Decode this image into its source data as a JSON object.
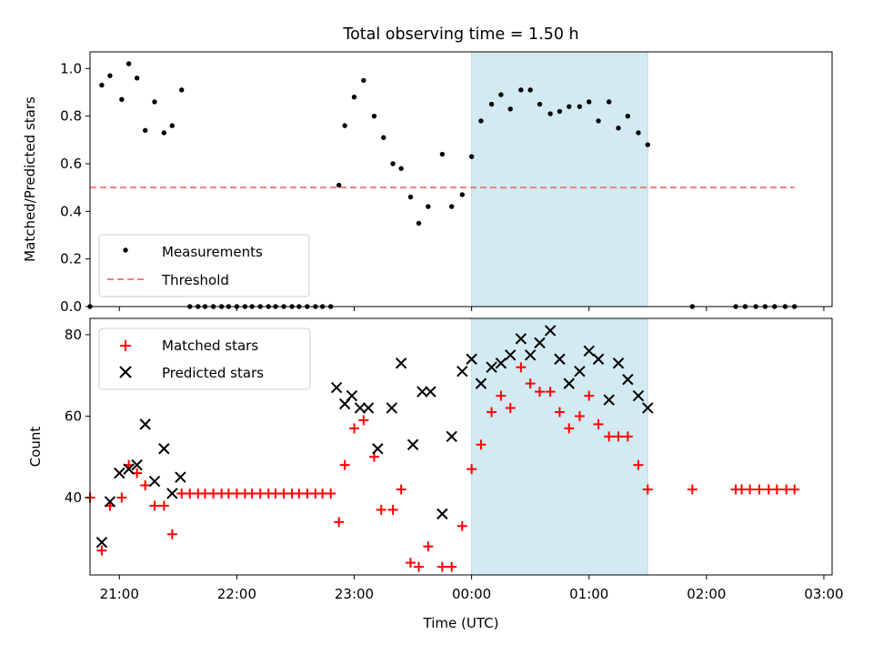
{
  "chart_data": [
    {
      "type": "scatter",
      "title": "Total observing time = 1.50 h",
      "ylabel": "Matched/Predicted stars",
      "xlabel": "",
      "xlim": [
        -3.25,
        3.07
      ],
      "ylim": [
        0,
        1.07
      ],
      "xticks": [
        -3,
        -2,
        -1,
        0,
        1,
        2,
        3
      ],
      "yticks": [
        0.0,
        0.2,
        0.4,
        0.6,
        0.8,
        1.0
      ],
      "ytick_labels": [
        "0.0",
        "0.2",
        "0.4",
        "0.6",
        "0.8",
        "1.0"
      ],
      "highlight_span": {
        "x0": 0.0,
        "x1": 1.5,
        "color": "#add8e6"
      },
      "threshold": {
        "name": "Threshold",
        "y": 0.5,
        "x0": -3.25,
        "x1": 2.75,
        "color": "#f07f7f"
      },
      "legend": {
        "position": "lower-left",
        "entries": [
          "Measurements",
          "Threshold"
        ]
      },
      "series": [
        {
          "name": "Measurements",
          "color": "#000000",
          "points": [
            [
              -3.25,
              0.0
            ],
            [
              -3.15,
              0.93
            ],
            [
              -3.08,
              0.97
            ],
            [
              -2.98,
              0.87
            ],
            [
              -2.92,
              1.02
            ],
            [
              -2.85,
              0.96
            ],
            [
              -2.78,
              0.74
            ],
            [
              -2.7,
              0.86
            ],
            [
              -2.62,
              0.73
            ],
            [
              -2.55,
              0.76
            ],
            [
              -2.47,
              0.91
            ],
            [
              -2.4,
              0.0
            ],
            [
              -2.33,
              0.0
            ],
            [
              -2.27,
              0.0
            ],
            [
              -2.2,
              0.0
            ],
            [
              -2.13,
              0.0
            ],
            [
              -2.07,
              0.0
            ],
            [
              -2.0,
              0.0
            ],
            [
              -1.93,
              0.0
            ],
            [
              -1.87,
              0.0
            ],
            [
              -1.8,
              0.0
            ],
            [
              -1.73,
              0.0
            ],
            [
              -1.67,
              0.0
            ],
            [
              -1.6,
              0.0
            ],
            [
              -1.53,
              0.0
            ],
            [
              -1.47,
              0.0
            ],
            [
              -1.4,
              0.0
            ],
            [
              -1.33,
              0.0
            ],
            [
              -1.27,
              0.0
            ],
            [
              -1.2,
              0.0
            ],
            [
              -1.13,
              0.51
            ],
            [
              -1.08,
              0.76
            ],
            [
              -1.0,
              0.88
            ],
            [
              -0.92,
              0.95
            ],
            [
              -0.83,
              0.8
            ],
            [
              -0.75,
              0.71
            ],
            [
              -0.67,
              0.6
            ],
            [
              -0.6,
              0.58
            ],
            [
              -0.52,
              0.46
            ],
            [
              -0.45,
              0.35
            ],
            [
              -0.37,
              0.42
            ],
            [
              -0.25,
              0.64
            ],
            [
              -0.17,
              0.42
            ],
            [
              -0.08,
              0.47
            ],
            [
              0.0,
              0.63
            ],
            [
              0.08,
              0.78
            ],
            [
              0.17,
              0.85
            ],
            [
              0.25,
              0.89
            ],
            [
              0.33,
              0.83
            ],
            [
              0.42,
              0.91
            ],
            [
              0.5,
              0.91
            ],
            [
              0.58,
              0.85
            ],
            [
              0.67,
              0.81
            ],
            [
              0.75,
              0.82
            ],
            [
              0.83,
              0.84
            ],
            [
              0.92,
              0.84
            ],
            [
              1.0,
              0.86
            ],
            [
              1.08,
              0.78
            ],
            [
              1.17,
              0.86
            ],
            [
              1.25,
              0.75
            ],
            [
              1.33,
              0.8
            ],
            [
              1.42,
              0.73
            ],
            [
              1.5,
              0.68
            ],
            [
              1.88,
              0.0
            ],
            [
              2.25,
              0.0
            ],
            [
              2.33,
              0.0
            ],
            [
              2.42,
              0.0
            ],
            [
              2.5,
              0.0
            ],
            [
              2.58,
              0.0
            ],
            [
              2.67,
              0.0
            ],
            [
              2.75,
              0.0
            ]
          ]
        }
      ]
    },
    {
      "type": "scatter",
      "title": "",
      "ylabel": "Count",
      "xlabel": "Time (UTC)",
      "xlim": [
        -3.25,
        3.07
      ],
      "ylim": [
        21,
        84
      ],
      "xticks": [
        -3,
        -2,
        -1,
        0,
        1,
        2,
        3
      ],
      "xtick_labels": [
        "21:00",
        "22:00",
        "23:00",
        "00:00",
        "01:00",
        "02:00",
        "03:00"
      ],
      "yticks": [
        40,
        60,
        80
      ],
      "ytick_labels": [
        "40",
        "60",
        "80"
      ],
      "highlight_span": {
        "x0": 0.0,
        "x1": 1.5,
        "color": "#add8e6"
      },
      "legend": {
        "position": "upper-left",
        "entries": [
          "Matched stars",
          "Predicted stars"
        ]
      },
      "series": [
        {
          "name": "Matched stars",
          "marker": "plus",
          "color": "#ff0000",
          "points": [
            [
              -3.25,
              40
            ],
            [
              -3.15,
              27
            ],
            [
              -3.08,
              38
            ],
            [
              -2.98,
              40
            ],
            [
              -2.92,
              48
            ],
            [
              -2.85,
              46
            ],
            [
              -2.78,
              43
            ],
            [
              -2.7,
              38
            ],
            [
              -2.62,
              38
            ],
            [
              -2.55,
              31
            ],
            [
              -2.47,
              41
            ],
            [
              -2.4,
              41
            ],
            [
              -2.33,
              41
            ],
            [
              -2.27,
              41
            ],
            [
              -2.2,
              41
            ],
            [
              -2.13,
              41
            ],
            [
              -2.07,
              41
            ],
            [
              -2.0,
              41
            ],
            [
              -1.93,
              41
            ],
            [
              -1.87,
              41
            ],
            [
              -1.8,
              41
            ],
            [
              -1.73,
              41
            ],
            [
              -1.67,
              41
            ],
            [
              -1.6,
              41
            ],
            [
              -1.53,
              41
            ],
            [
              -1.47,
              41
            ],
            [
              -1.4,
              41
            ],
            [
              -1.33,
              41
            ],
            [
              -1.27,
              41
            ],
            [
              -1.2,
              41
            ],
            [
              -1.13,
              34
            ],
            [
              -1.08,
              48
            ],
            [
              -1.0,
              57
            ],
            [
              -0.92,
              59
            ],
            [
              -0.83,
              50
            ],
            [
              -0.77,
              37
            ],
            [
              -0.67,
              37
            ],
            [
              -0.6,
              42
            ],
            [
              -0.52,
              24
            ],
            [
              -0.45,
              23
            ],
            [
              -0.37,
              28
            ],
            [
              -0.25,
              23
            ],
            [
              -0.17,
              23
            ],
            [
              -0.08,
              33
            ],
            [
              0.0,
              47
            ],
            [
              0.08,
              53
            ],
            [
              0.17,
              61
            ],
            [
              0.25,
              65
            ],
            [
              0.33,
              62
            ],
            [
              0.42,
              72
            ],
            [
              0.5,
              68
            ],
            [
              0.58,
              66
            ],
            [
              0.67,
              66
            ],
            [
              0.75,
              61
            ],
            [
              0.83,
              57
            ],
            [
              0.92,
              60
            ],
            [
              1.0,
              65
            ],
            [
              1.08,
              58
            ],
            [
              1.17,
              55
            ],
            [
              1.25,
              55
            ],
            [
              1.33,
              55
            ],
            [
              1.42,
              48
            ],
            [
              1.5,
              42
            ],
            [
              1.88,
              42
            ],
            [
              2.25,
              42
            ],
            [
              2.3,
              42
            ],
            [
              2.37,
              42
            ],
            [
              2.45,
              42
            ],
            [
              2.53,
              42
            ],
            [
              2.6,
              42
            ],
            [
              2.68,
              42
            ],
            [
              2.75,
              42
            ]
          ]
        },
        {
          "name": "Predicted stars",
          "marker": "x",
          "color": "#000000",
          "points": [
            [
              -3.15,
              29
            ],
            [
              -3.08,
              39
            ],
            [
              -3.0,
              46
            ],
            [
              -2.92,
              47
            ],
            [
              -2.85,
              48
            ],
            [
              -2.78,
              58
            ],
            [
              -2.7,
              44
            ],
            [
              -2.62,
              52
            ],
            [
              -2.55,
              41
            ],
            [
              -2.48,
              45
            ],
            [
              -1.15,
              67
            ],
            [
              -1.08,
              63
            ],
            [
              -1.02,
              65
            ],
            [
              -0.95,
              62
            ],
            [
              -0.88,
              62
            ],
            [
              -0.8,
              52
            ],
            [
              -0.68,
              62
            ],
            [
              -0.6,
              73
            ],
            [
              -0.5,
              53
            ],
            [
              -0.42,
              66
            ],
            [
              -0.35,
              66
            ],
            [
              -0.25,
              36
            ],
            [
              -0.17,
              55
            ],
            [
              -0.08,
              71
            ],
            [
              0.0,
              74
            ],
            [
              0.08,
              68
            ],
            [
              0.17,
              72
            ],
            [
              0.25,
              73
            ],
            [
              0.33,
              75
            ],
            [
              0.42,
              79
            ],
            [
              0.5,
              75
            ],
            [
              0.58,
              78
            ],
            [
              0.67,
              81
            ],
            [
              0.75,
              74
            ],
            [
              0.83,
              68
            ],
            [
              0.92,
              71
            ],
            [
              1.0,
              76
            ],
            [
              1.08,
              74
            ],
            [
              1.17,
              64
            ],
            [
              1.25,
              73
            ],
            [
              1.33,
              69
            ],
            [
              1.42,
              65
            ],
            [
              1.5,
              62
            ]
          ]
        }
      ]
    }
  ]
}
